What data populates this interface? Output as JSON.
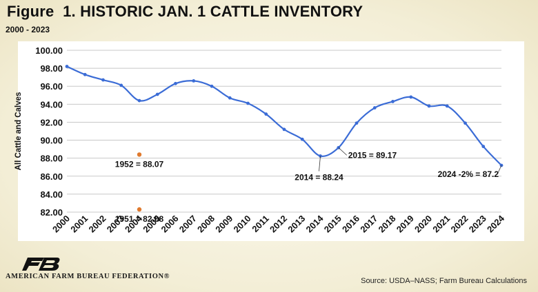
{
  "title_prefix": "Figure",
  "title_main": "1. HISTORIC JAN. 1 CATTLE INVENTORY",
  "subtitle": "2000 - 2023",
  "org_name": "AMERICAN FARM BUREAU FEDERATION®",
  "source": "Source: USDA–NASS; Farm Bureau Calculations",
  "colors": {
    "line": "#3b6cd6",
    "dot": "#e07a2e",
    "grid": "#c8c8c8"
  },
  "chart_data": {
    "type": "line",
    "title": "Figure 1. HISTORIC JAN. 1 CATTLE INVENTORY",
    "subtitle": "2000 - 2023",
    "xlabel": "",
    "ylabel": "All Cattle and Calves",
    "ylim": [
      82.0,
      100.0
    ],
    "yticks": [
      "82.00",
      "84.00",
      "86.00",
      "88.00",
      "90.00",
      "92.00",
      "94.00",
      "96.00",
      "98.00",
      "100.00"
    ],
    "grid": true,
    "categories": [
      "2000",
      "2001",
      "2002",
      "2003",
      "2004",
      "2005",
      "2006",
      "2007",
      "2008",
      "2009",
      "2010",
      "2011",
      "2012",
      "2013",
      "2014",
      "2015",
      "2016",
      "2017",
      "2018",
      "2019",
      "2020",
      "2021",
      "2022",
      "2023",
      "2024"
    ],
    "series": [
      {
        "values": [
          98.2,
          97.3,
          96.7,
          96.1,
          94.4,
          95.1,
          96.3,
          96.6,
          96.0,
          94.7,
          94.1,
          92.9,
          91.2,
          90.1,
          88.24,
          89.17,
          91.9,
          93.6,
          94.3,
          94.8,
          93.8,
          93.8,
          91.9,
          89.3,
          87.2
        ]
      }
    ],
    "historical_points": [
      {
        "x": "2004",
        "y": 88.4,
        "label": "1952 = 88.07"
      },
      {
        "x": "2004",
        "y": 82.3,
        "label": "1951 = 82.08"
      }
    ],
    "annotations": [
      {
        "x": "2014",
        "text": "2014 = 88.24"
      },
      {
        "x": "2015",
        "text": "2015 = 89.17"
      },
      {
        "x": "2024",
        "text": "2024 -2% = 87.2"
      }
    ]
  }
}
